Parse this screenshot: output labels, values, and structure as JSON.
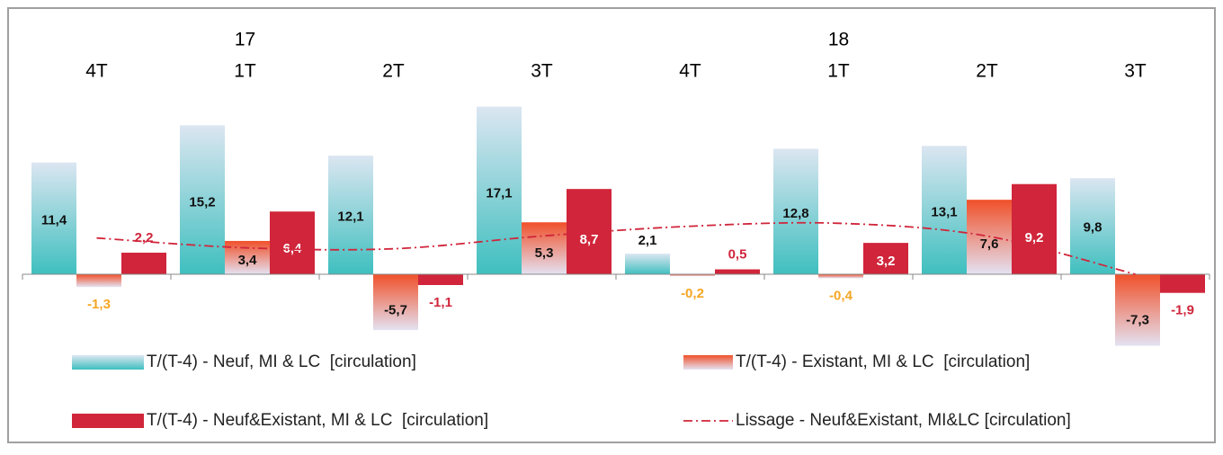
{
  "chart_data": {
    "type": "bar",
    "categories": [
      "4T",
      "1T",
      "2T",
      "3T",
      "4T",
      "1T",
      "2T",
      "3T"
    ],
    "year_labels": [
      null,
      "17",
      null,
      null,
      null,
      "18",
      null,
      null
    ],
    "ylim": [
      -8,
      18
    ],
    "series": [
      {
        "name": "T/(T-4) - Neuf, MI & LC  [circulation]",
        "type": "bar",
        "color": "#3fbfbf",
        "gradient": [
          "#dbe6f1",
          "#3fbfbf"
        ],
        "values": [
          11.4,
          15.2,
          12.1,
          17.1,
          2.1,
          12.8,
          13.1,
          9.8
        ],
        "value_labels": [
          "11,4",
          "15,2",
          "12,1",
          "17,1",
          "2,1",
          "12,8",
          "13,1",
          "9,8"
        ]
      },
      {
        "name": "T/(T-4) - Existant, MI & LC  [circulation]",
        "type": "bar",
        "color": "#f0502a",
        "gradient": [
          "#f0502a",
          "#e4e2f2"
        ],
        "label_color": "#f5a623",
        "values": [
          -1.3,
          3.4,
          -5.7,
          5.3,
          -0.2,
          -0.4,
          7.6,
          -7.3
        ],
        "value_labels": [
          "-1,3",
          "3,4",
          "-5,7",
          "5,3",
          "-0,2",
          "-0,4",
          "7,6",
          "-7,3"
        ]
      },
      {
        "name": "T/(T-4) - Neuf&Existant, MI & LC  [circulation]",
        "type": "bar",
        "color": "#d0253a",
        "label_color": "#d0253a",
        "values": [
          2.2,
          6.4,
          -1.1,
          8.7,
          0.5,
          3.2,
          9.2,
          -1.9
        ],
        "value_labels": [
          "2,2",
          "6,4",
          "-1,1",
          "8,7",
          "0,5",
          "3,2",
          "9,2",
          "-1,9"
        ]
      },
      {
        "name": "Lissage - Neuf&Existant, MI&LC [circulation]",
        "type": "line",
        "color": "#d0253a",
        "values": [
          3.7,
          2.7,
          2.6,
          3.9,
          4.9,
          5.2,
          3.9,
          0.0
        ]
      }
    ]
  }
}
